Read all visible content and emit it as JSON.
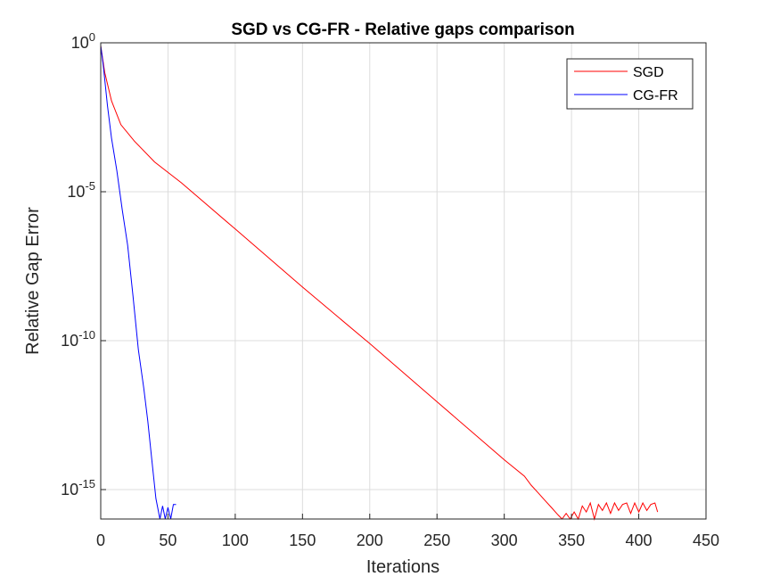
{
  "chart_data": {
    "type": "line",
    "title": "SGD vs CG-FR - Relative gaps comparison",
    "xlabel": "Iterations",
    "ylabel": "Relative Gap Error",
    "xlim": [
      0,
      450
    ],
    "ylim_log10": [
      -16,
      0
    ],
    "yscale": "log",
    "grid": true,
    "legend_position": "top-right",
    "x_ticks": [
      "0",
      "50",
      "100",
      "150",
      "200",
      "250",
      "300",
      "350",
      "400",
      "450"
    ],
    "y_ticks": [
      {
        "value": 0,
        "base": "10",
        "exp": "0"
      },
      {
        "value": -5,
        "base": "10",
        "exp": "-5"
      },
      {
        "value": -10,
        "base": "10",
        "exp": "-10"
      },
      {
        "value": -15,
        "base": "10",
        "exp": "-15"
      }
    ],
    "series": [
      {
        "name": "SGD",
        "color": "#ff0000",
        "x": [
          0,
          3,
          8,
          15,
          25,
          40,
          60,
          100,
          150,
          200,
          250,
          300,
          315,
          320,
          325,
          330,
          335,
          340,
          343,
          346,
          349,
          352,
          355,
          358,
          361,
          364,
          367,
          370,
          373,
          376,
          379,
          382,
          385,
          388,
          391,
          394,
          397,
          400,
          403,
          406,
          409,
          412,
          414
        ],
        "y_log10": [
          -0.1,
          -1.0,
          -1.95,
          -2.75,
          -3.3,
          -4.0,
          -4.7,
          -6.25,
          -8.2,
          -10.1,
          -12.05,
          -14.0,
          -14.55,
          -14.85,
          -15.1,
          -15.35,
          -15.6,
          -15.85,
          -16.0,
          -15.8,
          -16.0,
          -15.75,
          -16.0,
          -15.55,
          -15.75,
          -15.45,
          -16.0,
          -15.5,
          -15.7,
          -15.45,
          -15.8,
          -15.45,
          -15.7,
          -15.5,
          -15.45,
          -15.8,
          -15.45,
          -15.75,
          -15.45,
          -15.7,
          -15.5,
          -15.45,
          -15.75
        ]
      },
      {
        "name": "CG-FR",
        "color": "#0000ff",
        "x": [
          0,
          2,
          5,
          8,
          12,
          16,
          20,
          24,
          28,
          32,
          35,
          38,
          41,
          44,
          46,
          48,
          50,
          52,
          54,
          56
        ],
        "y_log10": [
          -0.1,
          -0.8,
          -2.1,
          -3.2,
          -4.3,
          -5.6,
          -6.8,
          -8.5,
          -10.3,
          -11.6,
          -12.7,
          -14.0,
          -15.3,
          -16.0,
          -15.55,
          -16.0,
          -15.6,
          -16.0,
          -15.5,
          -15.5
        ]
      }
    ]
  }
}
